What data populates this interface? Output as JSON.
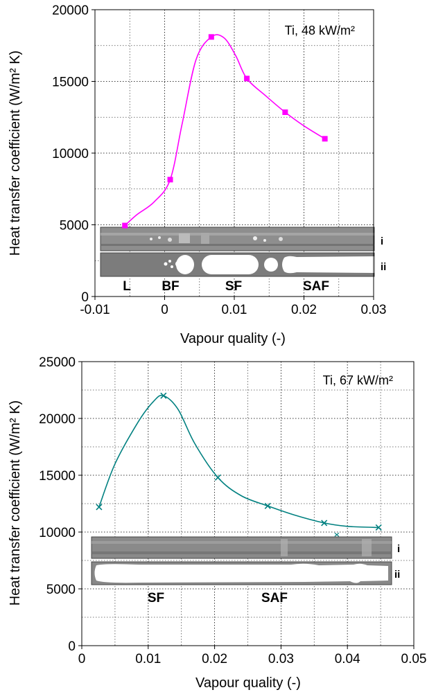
{
  "chart_data": [
    {
      "type": "line",
      "annotation": "Ti, 48 kW/m²",
      "xlabel": "Vapour quality (-)",
      "ylabel": "Heat transfer coefficient (W/m² K)",
      "xlim": [
        -0.01,
        0.03
      ],
      "ylim": [
        0,
        20000
      ],
      "xticks": [
        -0.01,
        0,
        0.01,
        0.02,
        0.03
      ],
      "xtick_labels": [
        "-0.01",
        "0",
        "0.01",
        "0.02",
        "0.03"
      ],
      "yticks": [
        0,
        5000,
        10000,
        15000,
        20000
      ],
      "ytick_labels": [
        "0",
        "5000",
        "10000",
        "15000",
        "20000"
      ],
      "grid": true,
      "color": "#ff00ff",
      "marker": "square",
      "series": [
        {
          "x": [
            -0.0057,
            0.0008,
            0.0067,
            0.0118,
            0.0173,
            0.023
          ],
          "y": [
            4950,
            8150,
            18100,
            15200,
            12850,
            11000
          ]
        }
      ],
      "curve": {
        "x": [
          -0.0057,
          -0.004,
          -0.0015,
          0.0008,
          0.0025,
          0.0045,
          0.0067,
          0.0085,
          0.0102,
          0.0118,
          0.0145,
          0.0173,
          0.02,
          0.023
        ],
        "y": [
          4950,
          5700,
          6600,
          8150,
          12000,
          16500,
          18100,
          18050,
          16800,
          15200,
          14000,
          12850,
          11900,
          11000
        ]
      },
      "photo_labels": [
        "i",
        "ii"
      ],
      "regions": [
        "L",
        "BF",
        "SF",
        "SAF"
      ]
    },
    {
      "type": "line",
      "annotation": "Ti, 67 kW/m²",
      "xlabel": "Vapour quality (-)",
      "ylabel": "Heat transfer coefficient (W/m² K)",
      "xlim": [
        0,
        0.05
      ],
      "ylim": [
        0,
        25000
      ],
      "xticks": [
        0,
        0.01,
        0.02,
        0.03,
        0.04,
        0.05
      ],
      "xtick_labels": [
        "0",
        "0.01",
        "0.02",
        "0.03",
        "0.04",
        "0.05"
      ],
      "yticks": [
        0,
        5000,
        10000,
        15000,
        20000,
        25000
      ],
      "ytick_labels": [
        "0",
        "5000",
        "10000",
        "15000",
        "20000",
        "25000"
      ],
      "grid": true,
      "color": "#008080",
      "marker": "x",
      "series": [
        {
          "x": [
            0.0026,
            0.0123,
            0.0205,
            0.028,
            0.0365,
            0.0447
          ],
          "y": [
            12200,
            22000,
            14800,
            12300,
            10800,
            10400
          ]
        }
      ],
      "curve": {
        "x": [
          0.0026,
          0.005,
          0.0085,
          0.0108,
          0.0123,
          0.0145,
          0.017,
          0.0205,
          0.024,
          0.028,
          0.032,
          0.0365,
          0.04,
          0.0447
        ],
        "y": [
          12200,
          16000,
          19700,
          21500,
          22000,
          20800,
          17800,
          14800,
          13200,
          12300,
          11500,
          10800,
          10500,
          10400
        ]
      },
      "extra_marker": {
        "x": 0.0384,
        "y": 9800
      },
      "photo_labels": [
        "i",
        "ii"
      ],
      "regions": [
        "SF",
        "SAF"
      ]
    }
  ]
}
